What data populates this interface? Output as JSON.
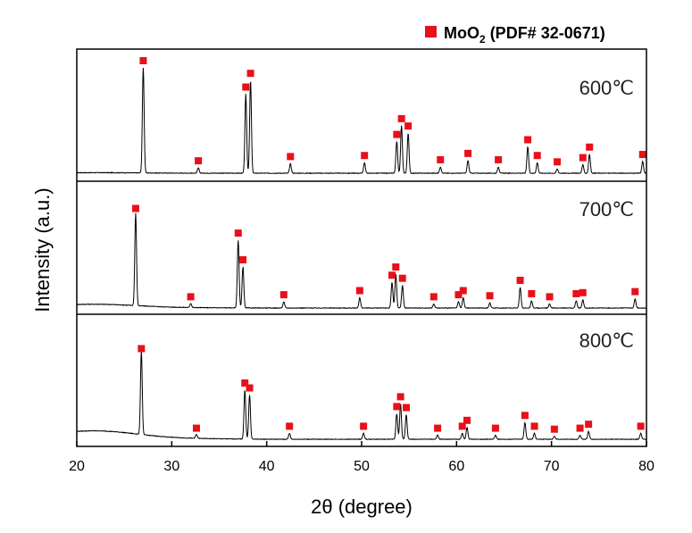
{
  "chart_data": {
    "type": "line",
    "xlabel": "2θ (degree)",
    "ylabel": "Intensity (a.u.)",
    "xlim": [
      20,
      80
    ],
    "xticks": [
      "20",
      "30",
      "40",
      "50",
      "60",
      "70",
      "80"
    ],
    "legend": {
      "placement": "top-right",
      "marker_color": "#e8101a",
      "label_main": "MoO",
      "label_sub": "2",
      "label_rest": " (PDF# 32-0671)"
    },
    "line_color": "#000000",
    "marker_color": "#e8101a",
    "series": [
      {
        "name": "600℃",
        "peaks": [
          {
            "x": 27.0,
            "h": 1.0
          },
          {
            "x": 32.8,
            "h": 0.05
          },
          {
            "x": 37.8,
            "h": 0.75
          },
          {
            "x": 38.3,
            "h": 0.88
          },
          {
            "x": 42.5,
            "h": 0.09
          },
          {
            "x": 50.3,
            "h": 0.1
          },
          {
            "x": 53.7,
            "h": 0.3
          },
          {
            "x": 54.2,
            "h": 0.45
          },
          {
            "x": 54.9,
            "h": 0.38
          },
          {
            "x": 58.3,
            "h": 0.06
          },
          {
            "x": 61.2,
            "h": 0.12
          },
          {
            "x": 64.4,
            "h": 0.06
          },
          {
            "x": 67.5,
            "h": 0.25
          },
          {
            "x": 68.5,
            "h": 0.1
          },
          {
            "x": 70.6,
            "h": 0.04
          },
          {
            "x": 73.3,
            "h": 0.08
          },
          {
            "x": 74.0,
            "h": 0.18
          },
          {
            "x": 79.6,
            "h": 0.11
          }
        ]
      },
      {
        "name": "700℃",
        "peaks": [
          {
            "x": 26.2,
            "h": 0.9
          },
          {
            "x": 32.0,
            "h": 0.04
          },
          {
            "x": 37.0,
            "h": 0.66
          },
          {
            "x": 37.5,
            "h": 0.4
          },
          {
            "x": 41.8,
            "h": 0.06
          },
          {
            "x": 49.8,
            "h": 0.1
          },
          {
            "x": 53.2,
            "h": 0.25
          },
          {
            "x": 53.6,
            "h": 0.33
          },
          {
            "x": 54.3,
            "h": 0.22
          },
          {
            "x": 57.6,
            "h": 0.04
          },
          {
            "x": 60.2,
            "h": 0.06
          },
          {
            "x": 60.7,
            "h": 0.1
          },
          {
            "x": 63.5,
            "h": 0.05
          },
          {
            "x": 66.7,
            "h": 0.2
          },
          {
            "x": 67.9,
            "h": 0.07
          },
          {
            "x": 69.8,
            "h": 0.04
          },
          {
            "x": 72.6,
            "h": 0.07
          },
          {
            "x": 73.3,
            "h": 0.08
          },
          {
            "x": 78.8,
            "h": 0.09
          }
        ]
      },
      {
        "name": "800℃",
        "peaks": [
          {
            "x": 26.8,
            "h": 0.85
          },
          {
            "x": 32.6,
            "h": 0.04
          },
          {
            "x": 37.7,
            "h": 0.5
          },
          {
            "x": 38.2,
            "h": 0.45
          },
          {
            "x": 42.4,
            "h": 0.06
          },
          {
            "x": 50.2,
            "h": 0.06
          },
          {
            "x": 53.7,
            "h": 0.26
          },
          {
            "x": 54.1,
            "h": 0.36
          },
          {
            "x": 54.7,
            "h": 0.25
          },
          {
            "x": 58.0,
            "h": 0.04
          },
          {
            "x": 60.6,
            "h": 0.06
          },
          {
            "x": 61.1,
            "h": 0.12
          },
          {
            "x": 64.1,
            "h": 0.04
          },
          {
            "x": 67.2,
            "h": 0.17
          },
          {
            "x": 68.2,
            "h": 0.06
          },
          {
            "x": 70.3,
            "h": 0.03
          },
          {
            "x": 73.0,
            "h": 0.04
          },
          {
            "x": 73.9,
            "h": 0.08
          },
          {
            "x": 79.4,
            "h": 0.06
          }
        ]
      }
    ]
  }
}
